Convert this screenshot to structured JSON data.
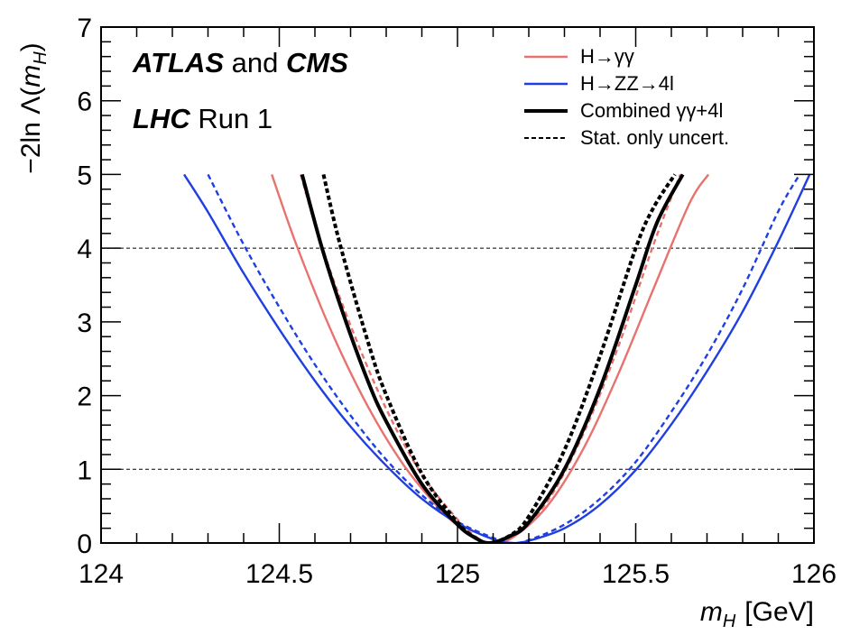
{
  "chart_data": {
    "type": "line",
    "title": "",
    "xlabel": "m_H [GeV]",
    "xlabel_parts": {
      "symbol": "m",
      "subscript": "H",
      "unit": "[GeV]"
    },
    "ylabel": "−2ln Λ(m_H)",
    "ylabel_parts": {
      "prefix": "−2ln Λ(",
      "symbol": "m",
      "subscript": "H",
      "suffix": ")"
    },
    "xlim": [
      124,
      126
    ],
    "ylim": [
      0,
      7
    ],
    "x_ticks": [
      124,
      124.5,
      125,
      125.5,
      126
    ],
    "x_tick_labels": [
      "124",
      "124.5",
      "125",
      "125.5",
      "126"
    ],
    "y_ticks": [
      0,
      1,
      2,
      3,
      4,
      5,
      6,
      7
    ],
    "y_tick_labels": [
      "0",
      "1",
      "2",
      "3",
      "4",
      "5",
      "6",
      "7"
    ],
    "reference_lines_y": [
      1,
      4
    ],
    "grid": false,
    "legend_position": "top-right",
    "annotations": {
      "line1": {
        "bold": "ATLAS",
        "plain": " and ",
        "bold2": "CMS"
      },
      "line2": {
        "bold": "LHC",
        "plain": " Run 1"
      }
    },
    "legend": [
      {
        "label": "H→γγ",
        "color": "#E8726E",
        "style": "solid",
        "width": 2.4
      },
      {
        "label": "H→ZZ→4l",
        "color": "#1F3FE0",
        "style": "solid",
        "width": 2.4
      },
      {
        "label": "Combined γγ+4l",
        "color": "#000000",
        "style": "solid",
        "width": 4
      },
      {
        "label": "Stat. only uncert.",
        "color": "#000000",
        "style": "dashed",
        "width": 2
      }
    ],
    "series": [
      {
        "name": "H→γγ",
        "color": "#E8726E",
        "style": "solid",
        "width": 2.4,
        "x": [
          124.479,
          124.55,
          124.65,
          124.75,
          124.85,
          124.95,
          125.0,
          125.05,
          125.09,
          125.15,
          125.25,
          125.35,
          125.45,
          125.55,
          125.65,
          125.704
        ],
        "y": [
          5.0,
          4.02,
          2.83,
          1.84,
          1.05,
          0.46,
          0.24,
          0.07,
          0.0,
          0.06,
          0.49,
          1.25,
          2.28,
          3.45,
          4.6,
          5.0
        ]
      },
      {
        "name": "H→γγ (stat. only)",
        "color": "#E8726E",
        "style": "dashed",
        "width": 2.4,
        "x": [
          124.56,
          124.62,
          124.7,
          124.8,
          124.9,
          125.0,
          125.05,
          125.09,
          125.15,
          125.25,
          125.35,
          125.45,
          125.55,
          125.625
        ],
        "y": [
          5.0,
          4.02,
          2.95,
          1.82,
          0.93,
          0.32,
          0.09,
          0.0,
          0.07,
          0.55,
          1.45,
          2.65,
          4.05,
          5.0
        ]
      },
      {
        "name": "H→ZZ→4l",
        "color": "#1F3FE0",
        "style": "solid",
        "width": 2.4,
        "x": [
          124.233,
          124.3,
          124.4,
          124.5,
          124.6,
          124.7,
          124.8,
          124.9,
          125.0,
          125.1,
          125.15,
          125.2,
          125.3,
          125.4,
          125.5,
          125.6,
          125.7,
          125.8,
          125.9,
          125.988
        ],
        "y": [
          5.0,
          4.49,
          3.66,
          2.9,
          2.2,
          1.58,
          1.05,
          0.6,
          0.27,
          0.05,
          0.0,
          0.03,
          0.2,
          0.52,
          0.99,
          1.61,
          2.33,
          3.14,
          4.09,
          5.0
        ]
      },
      {
        "name": "H→ZZ→4l (stat. only)",
        "color": "#1F3FE0",
        "style": "dashed",
        "width": 2.4,
        "x": [
          124.3,
          124.4,
          124.5,
          124.6,
          124.7,
          124.8,
          124.9,
          125.0,
          125.1,
          125.15,
          125.2,
          125.3,
          125.4,
          125.5,
          125.6,
          125.7,
          125.8,
          125.9,
          125.96
        ],
        "y": [
          5.0,
          4.05,
          3.2,
          2.42,
          1.73,
          1.13,
          0.65,
          0.29,
          0.07,
          0.0,
          0.04,
          0.25,
          0.6,
          1.1,
          1.78,
          2.55,
          3.45,
          4.5,
          5.0
        ]
      },
      {
        "name": "Combined γγ+4l",
        "color": "#000000",
        "style": "solid",
        "width": 4,
        "x": [
          124.564,
          124.62,
          124.68,
          124.75,
          124.8,
          124.9,
          125.0,
          125.05,
          125.09,
          125.15,
          125.2,
          125.3,
          125.4,
          125.5,
          125.56,
          125.632
        ],
        "y": [
          5.0,
          4.0,
          3.1,
          2.18,
          1.65,
          0.8,
          0.25,
          0.07,
          0.0,
          0.1,
          0.28,
          1.0,
          2.1,
          3.5,
          4.35,
          5.0
        ]
      },
      {
        "name": "Combined γγ+4l (stat. only)",
        "color": "#000000",
        "style": "dashed",
        "width": 4,
        "x": [
          124.624,
          124.67,
          124.75,
          124.8,
          124.9,
          125.0,
          125.05,
          125.09,
          125.15,
          125.2,
          125.3,
          125.4,
          125.5,
          125.55,
          125.61
        ],
        "y": [
          5.0,
          4.06,
          2.71,
          2.01,
          0.94,
          0.28,
          0.07,
          0.0,
          0.11,
          0.36,
          1.26,
          2.54,
          4.0,
          4.55,
          5.0
        ]
      }
    ]
  }
}
